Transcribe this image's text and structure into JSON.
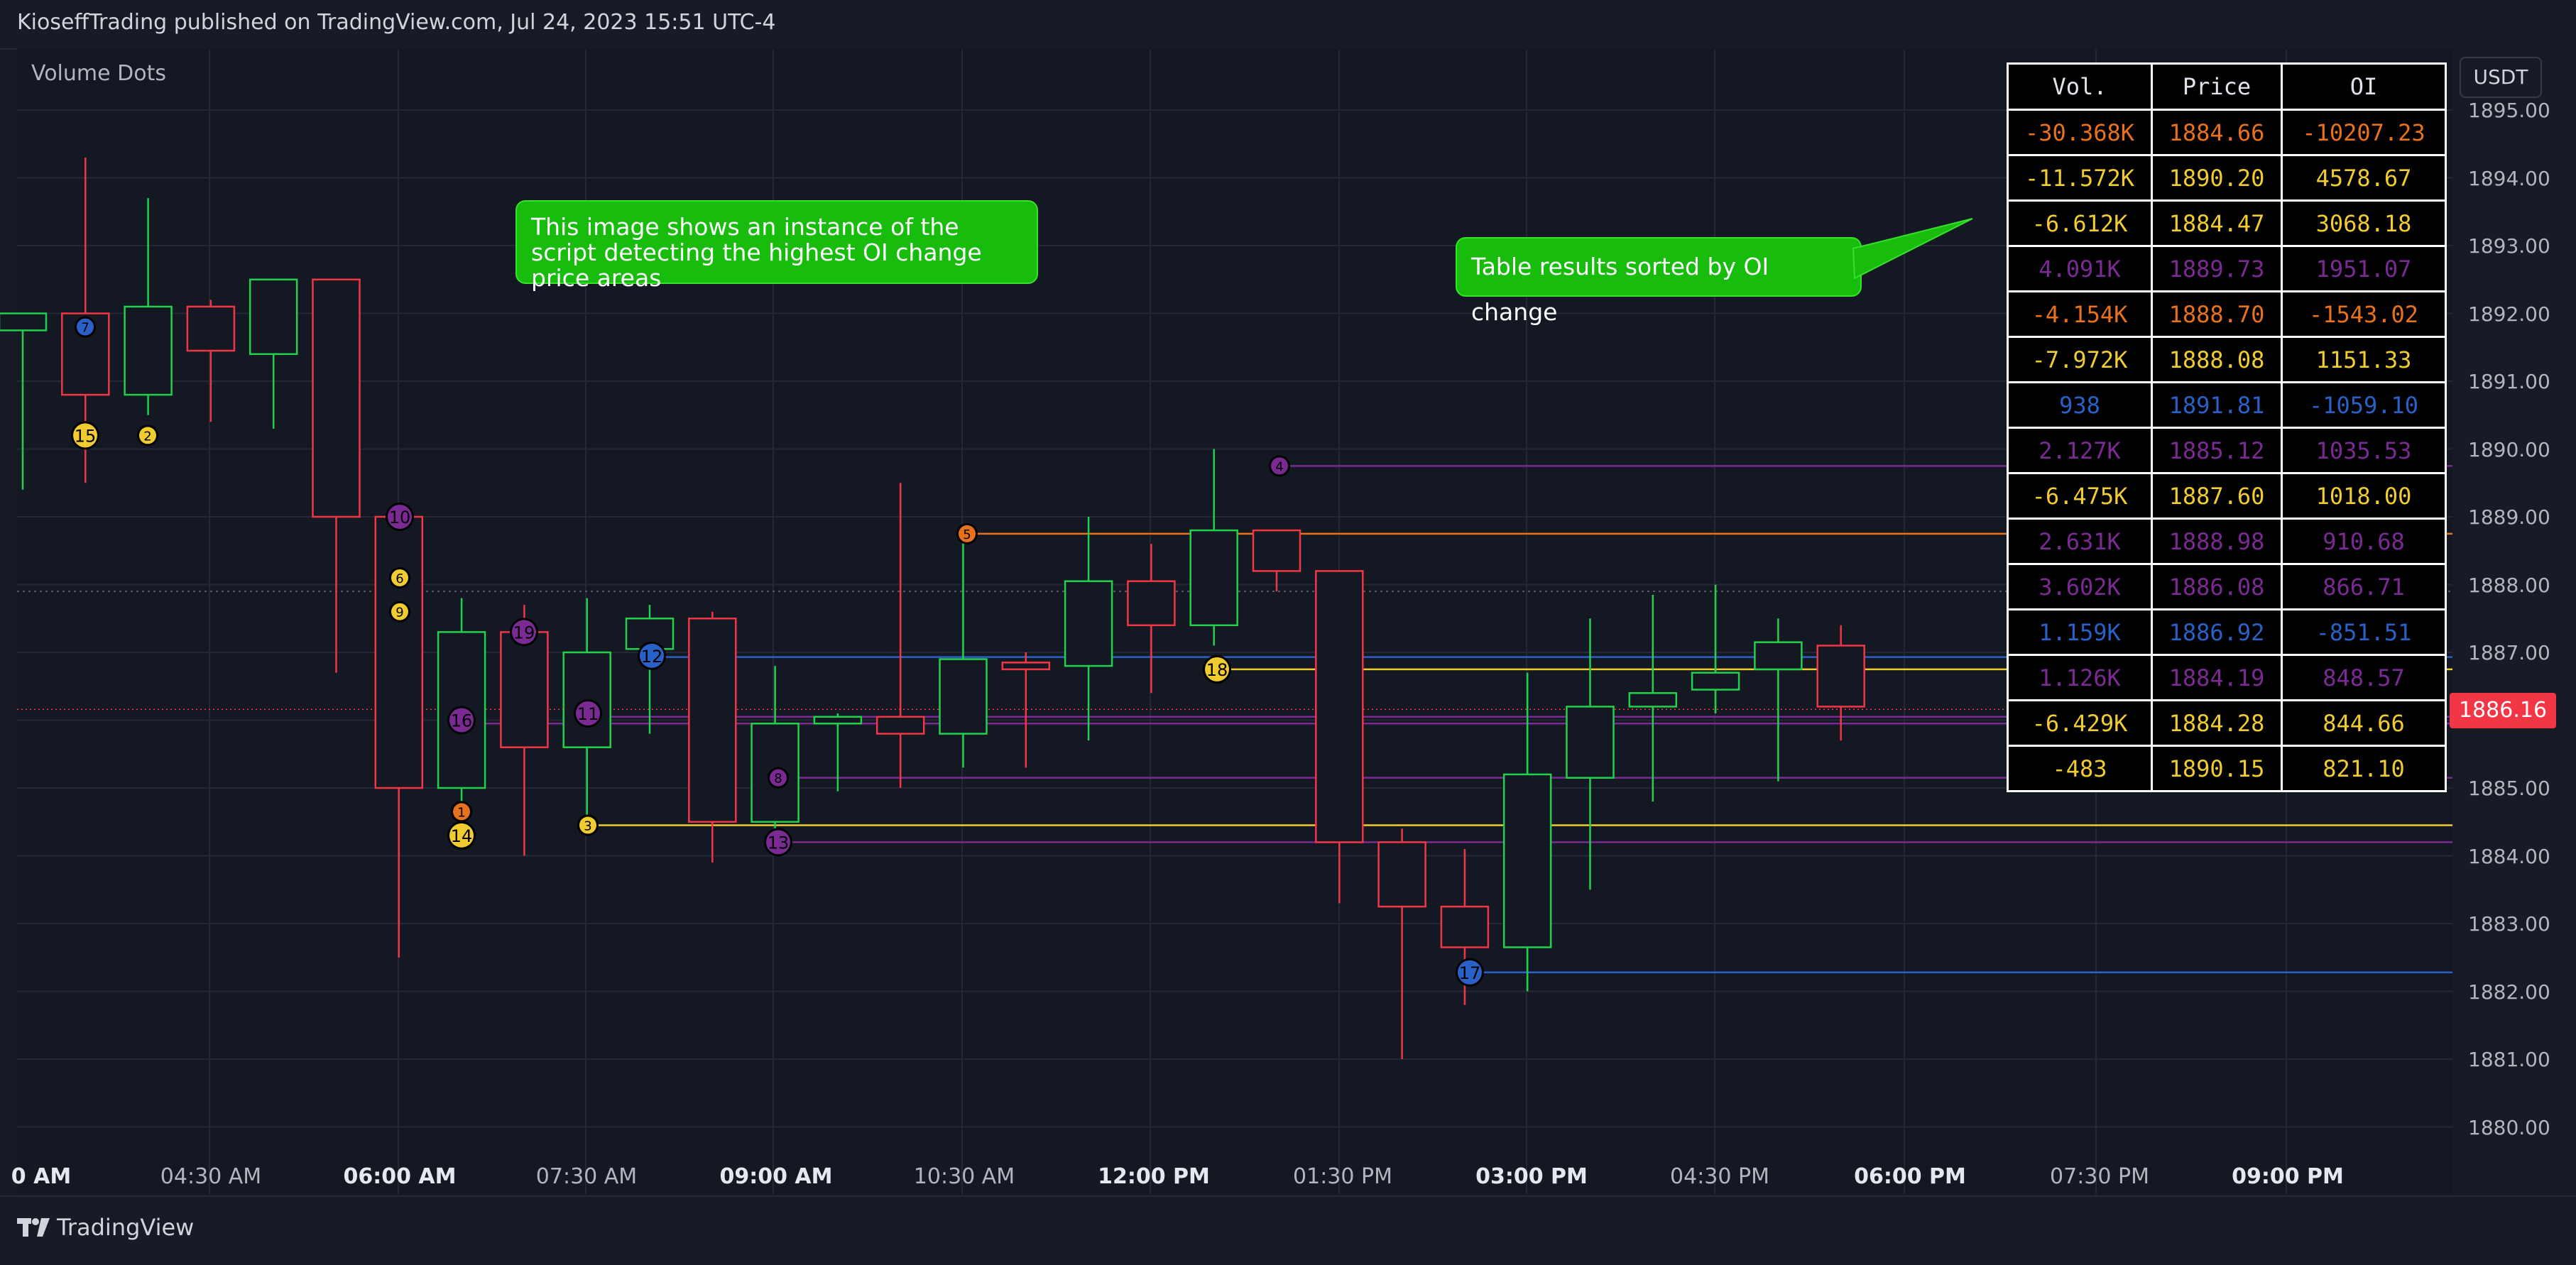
{
  "header": {
    "published_text": "KioseffTrading published on TradingView.com, Jul 24, 2023 15:51 UTC-4"
  },
  "indicator_label": "Volume Dots",
  "currency_button": "USDT",
  "last_price": "1886.16",
  "y_axis_ticks": [
    "1895.00",
    "1894.00",
    "1893.00",
    "1892.00",
    "1891.00",
    "1890.00",
    "1889.00",
    "1888.00",
    "1887.00",
    "1886.00",
    "1885.00",
    "1884.00",
    "1883.00",
    "1882.00",
    "1881.00",
    "1880.00"
  ],
  "x_axis_ticks": [
    {
      "label": "0 AM",
      "bold": true
    },
    {
      "label": "04:30 AM",
      "bold": false
    },
    {
      "label": "06:00 AM",
      "bold": true
    },
    {
      "label": "07:30 AM",
      "bold": false
    },
    {
      "label": "09:00 AM",
      "bold": true
    },
    {
      "label": "10:30 AM",
      "bold": false
    },
    {
      "label": "12:00 PM",
      "bold": true
    },
    {
      "label": "01:30 PM",
      "bold": false
    },
    {
      "label": "03:00 PM",
      "bold": true
    },
    {
      "label": "04:30 PM",
      "bold": false
    },
    {
      "label": "06:00 PM",
      "bold": true
    },
    {
      "label": "07:30 PM",
      "bold": false
    },
    {
      "label": "09:00 PM",
      "bold": true
    }
  ],
  "callouts": {
    "left": "This image shows an instance of the script detecting the highest OI change price areas",
    "right": "Table results sorted by OI change"
  },
  "table": {
    "headers": [
      "Vol.",
      "Price",
      "OI"
    ],
    "rows": [
      {
        "vol": "-30.368K",
        "price": "1884.66",
        "oi": "-10207.23",
        "color": "#e8711b"
      },
      {
        "vol": "-11.572K",
        "price": "1890.20",
        "oi": "4578.67",
        "color": "#f0cc30"
      },
      {
        "vol": "-6.612K",
        "price": "1884.47",
        "oi": "3068.18",
        "color": "#f0cc30"
      },
      {
        "vol": "4.091K",
        "price": "1889.73",
        "oi": "1951.07",
        "color": "#7b2a93"
      },
      {
        "vol": "-4.154K",
        "price": "1888.70",
        "oi": "-1543.02",
        "color": "#e8711b"
      },
      {
        "vol": "-7.972K",
        "price": "1888.08",
        "oi": "1151.33",
        "color": "#f0cc30"
      },
      {
        "vol": "938",
        "price": "1891.81",
        "oi": "-1059.10",
        "color": "#2961c8"
      },
      {
        "vol": "2.127K",
        "price": "1885.12",
        "oi": "1035.53",
        "color": "#7b2a93"
      },
      {
        "vol": "-6.475K",
        "price": "1887.60",
        "oi": "1018.00",
        "color": "#f0cc30"
      },
      {
        "vol": "2.631K",
        "price": "1888.98",
        "oi": "910.68",
        "color": "#7b2a93"
      },
      {
        "vol": "3.602K",
        "price": "1886.08",
        "oi": "866.71",
        "color": "#7b2a93"
      },
      {
        "vol": "1.159K",
        "price": "1886.92",
        "oi": "-851.51",
        "color": "#2961c8"
      },
      {
        "vol": "1.126K",
        "price": "1884.19",
        "oi": "848.57",
        "color": "#7b2a93"
      },
      {
        "vol": "-6.429K",
        "price": "1884.28",
        "oi": "844.66",
        "color": "#f0cc30"
      },
      {
        "vol": "-483",
        "price": "1890.15",
        "oi": "821.10",
        "color": "#f0cc30"
      }
    ]
  },
  "candles": [
    {
      "o": 1891.75,
      "h": 1892.0,
      "l": 1889.4,
      "c": 1892.0
    },
    {
      "o": 1892.0,
      "h": 1894.3,
      "l": 1889.5,
      "c": 1890.8
    },
    {
      "o": 1890.8,
      "h": 1893.7,
      "l": 1890.5,
      "c": 1892.1
    },
    {
      "o": 1892.1,
      "h": 1892.2,
      "l": 1890.4,
      "c": 1891.45
    },
    {
      "o": 1891.4,
      "h": 1892.5,
      "l": 1890.3,
      "c": 1892.5
    },
    {
      "o": 1892.5,
      "h": 1892.5,
      "l": 1886.7,
      "c": 1889.0
    },
    {
      "o": 1889.0,
      "h": 1889.0,
      "l": 1882.5,
      "c": 1885.0
    },
    {
      "o": 1885.0,
      "h": 1887.8,
      "l": 1884.7,
      "c": 1887.3
    },
    {
      "o": 1887.3,
      "h": 1887.7,
      "l": 1884.0,
      "c": 1885.6
    },
    {
      "o": 1885.6,
      "h": 1887.8,
      "l": 1884.5,
      "c": 1887.0
    },
    {
      "o": 1887.05,
      "h": 1887.7,
      "l": 1885.8,
      "c": 1887.5
    },
    {
      "o": 1887.5,
      "h": 1887.6,
      "l": 1883.9,
      "c": 1884.5
    },
    {
      "o": 1884.5,
      "h": 1886.8,
      "l": 1884.0,
      "c": 1885.95
    },
    {
      "o": 1885.95,
      "h": 1886.1,
      "l": 1884.95,
      "c": 1886.05
    },
    {
      "o": 1886.05,
      "h": 1889.5,
      "l": 1885.0,
      "c": 1885.8
    },
    {
      "o": 1885.8,
      "h": 1888.7,
      "l": 1885.3,
      "c": 1886.9
    },
    {
      "o": 1886.85,
      "h": 1887.0,
      "l": 1885.3,
      "c": 1886.75
    },
    {
      "o": 1886.8,
      "h": 1889.0,
      "l": 1885.7,
      "c": 1888.05
    },
    {
      "o": 1888.05,
      "h": 1888.6,
      "l": 1886.4,
      "c": 1887.4
    },
    {
      "o": 1887.4,
      "h": 1890.0,
      "l": 1887.1,
      "c": 1888.8
    },
    {
      "o": 1888.8,
      "h": 1888.8,
      "l": 1887.9,
      "c": 1888.2
    },
    {
      "o": 1888.2,
      "h": 1888.2,
      "l": 1883.3,
      "c": 1884.2
    },
    {
      "o": 1884.2,
      "h": 1884.4,
      "l": 1881.0,
      "c": 1883.25
    },
    {
      "o": 1883.25,
      "h": 1884.1,
      "l": 1881.8,
      "c": 1882.65
    },
    {
      "o": 1882.65,
      "h": 1886.7,
      "l": 1882.0,
      "c": 1885.2
    },
    {
      "o": 1885.15,
      "h": 1887.5,
      "l": 1883.5,
      "c": 1886.2
    },
    {
      "o": 1886.2,
      "h": 1887.85,
      "l": 1884.8,
      "c": 1886.4
    },
    {
      "o": 1886.45,
      "h": 1888.0,
      "l": 1886.1,
      "c": 1886.7
    },
    {
      "o": 1886.75,
      "h": 1887.5,
      "l": 1885.1,
      "c": 1887.15
    },
    {
      "o": 1887.1,
      "h": 1887.4,
      "l": 1885.7,
      "c": 1886.2
    }
  ],
  "level_lines": [
    {
      "price": 1889.75,
      "color": "#7b2a93"
    },
    {
      "price": 1888.75,
      "color": "#e8711b"
    },
    {
      "price": 1886.93,
      "color": "#2961c8"
    },
    {
      "price": 1886.75,
      "color": "#f0cc30"
    },
    {
      "price": 1886.05,
      "color": "#7b2a93"
    },
    {
      "price": 1885.95,
      "color": "#7b2a93"
    },
    {
      "price": 1885.15,
      "color": "#7b2a93"
    },
    {
      "price": 1884.45,
      "color": "#f0cc30"
    },
    {
      "price": 1884.2,
      "color": "#7b2a93"
    },
    {
      "price": 1882.28,
      "color": "#2961c8"
    }
  ],
  "dots": [
    {
      "label": "7",
      "price": 1891.8,
      "color": "#2961c8"
    },
    {
      "label": "15",
      "price": 1890.2,
      "color": "#f0cc30"
    },
    {
      "label": "2",
      "price": 1890.2,
      "color": "#f0cc30"
    },
    {
      "label": "10",
      "price": 1889.0,
      "color": "#7b2a93"
    },
    {
      "label": "6",
      "price": 1888.1,
      "color": "#f0cc30"
    },
    {
      "label": "9",
      "price": 1887.6,
      "color": "#f0cc30"
    },
    {
      "label": "16",
      "price": 1886.0,
      "color": "#7b2a93"
    },
    {
      "label": "1",
      "price": 1884.65,
      "color": "#e8711b"
    },
    {
      "label": "14",
      "price": 1884.3,
      "color": "#f0cc30"
    },
    {
      "label": "19",
      "price": 1887.3,
      "color": "#7b2a93"
    },
    {
      "label": "11",
      "price": 1886.1,
      "color": "#7b2a93"
    },
    {
      "label": "3",
      "price": 1884.45,
      "color": "#f0cc30"
    },
    {
      "label": "12",
      "price": 1886.95,
      "color": "#2961c8"
    },
    {
      "label": "8",
      "price": 1885.15,
      "color": "#7b2a93"
    },
    {
      "label": "13",
      "price": 1884.2,
      "color": "#7b2a93"
    },
    {
      "label": "5",
      "price": 1888.75,
      "color": "#e8711b"
    },
    {
      "label": "18",
      "price": 1886.75,
      "color": "#f0cc30"
    },
    {
      "label": "4",
      "price": 1889.75,
      "color": "#7b2a93"
    },
    {
      "label": "17",
      "price": 1882.28,
      "color": "#2961c8"
    }
  ],
  "colors": {
    "up": "#22d14b",
    "down": "#f23645",
    "background": "#141823",
    "grid": "#242836"
  },
  "footer": {
    "brand": "TradingView"
  }
}
